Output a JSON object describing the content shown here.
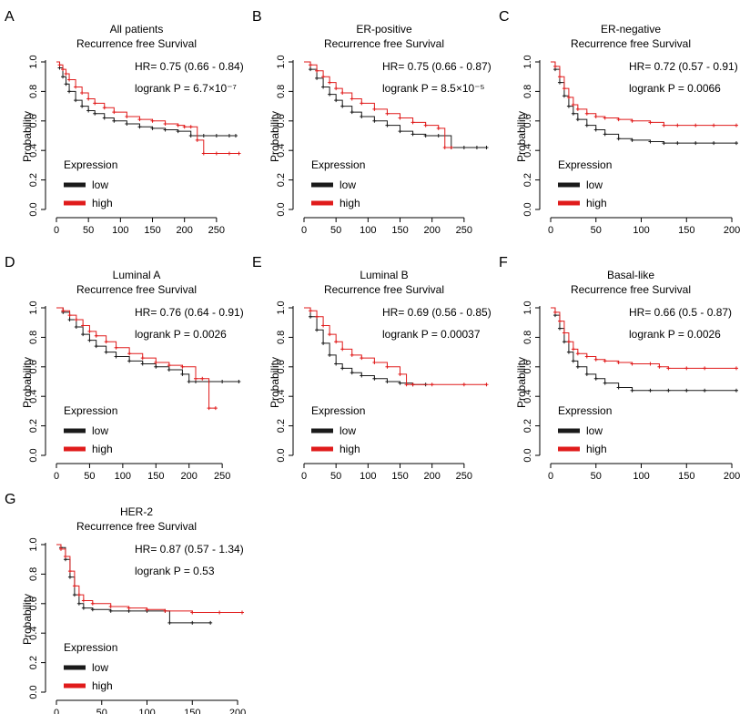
{
  "colors": {
    "low": "#1a1a1a",
    "high": "#e01b1b"
  },
  "chart_data": [
    {
      "panel": "A",
      "type": "line",
      "title": "All patients",
      "subtitle": "Recurrence free Survival",
      "hr": "HR= 0.75 (0.66 - 0.84)",
      "logrank": "logrank P = 6.7×10⁻⁷",
      "xlabel": "",
      "ylabel": "Probability",
      "xlim": [
        0,
        290
      ],
      "ylim": [
        0,
        1
      ],
      "xticks": [
        0,
        50,
        100,
        150,
        200,
        250
      ],
      "yticks": [
        0.0,
        0.2,
        0.4,
        0.6,
        0.8,
        1.0
      ],
      "legend": {
        "title": "Expression",
        "entries": [
          "low",
          "high"
        ]
      },
      "series": [
        {
          "name": "low",
          "x": [
            0,
            5,
            10,
            15,
            20,
            30,
            40,
            50,
            60,
            75,
            90,
            110,
            130,
            150,
            170,
            190,
            210,
            230,
            250,
            270,
            280
          ],
          "y": [
            1.0,
            0.96,
            0.9,
            0.85,
            0.8,
            0.74,
            0.7,
            0.67,
            0.65,
            0.62,
            0.6,
            0.58,
            0.56,
            0.55,
            0.54,
            0.53,
            0.5,
            0.5,
            0.5,
            0.5,
            0.5
          ]
        },
        {
          "name": "high",
          "x": [
            0,
            5,
            10,
            15,
            20,
            30,
            40,
            50,
            60,
            75,
            90,
            110,
            130,
            150,
            170,
            190,
            200,
            210,
            220,
            230,
            250,
            270,
            285
          ],
          "y": [
            1.0,
            0.98,
            0.95,
            0.92,
            0.88,
            0.83,
            0.79,
            0.75,
            0.72,
            0.69,
            0.66,
            0.63,
            0.61,
            0.6,
            0.58,
            0.57,
            0.56,
            0.56,
            0.47,
            0.38,
            0.38,
            0.38,
            0.38
          ]
        }
      ]
    },
    {
      "panel": "B",
      "type": "line",
      "title": "ER-positive",
      "subtitle": "Recurrence free Survival",
      "hr": "HR= 0.75 (0.66 - 0.87)",
      "logrank": "logrank P = 8.5×10⁻⁵",
      "xlabel": "",
      "ylabel": "Probability",
      "xlim": [
        0,
        290
      ],
      "ylim": [
        0,
        1
      ],
      "xticks": [
        0,
        50,
        100,
        150,
        200,
        250
      ],
      "yticks": [
        0.0,
        0.2,
        0.4,
        0.6,
        0.8,
        1.0
      ],
      "legend": {
        "title": "Expression",
        "entries": [
          "low",
          "high"
        ]
      },
      "series": [
        {
          "name": "low",
          "x": [
            0,
            10,
            20,
            30,
            40,
            50,
            60,
            75,
            90,
            110,
            130,
            150,
            170,
            190,
            210,
            230,
            250,
            270,
            285
          ],
          "y": [
            1.0,
            0.95,
            0.89,
            0.83,
            0.78,
            0.74,
            0.7,
            0.66,
            0.63,
            0.6,
            0.57,
            0.53,
            0.51,
            0.5,
            0.5,
            0.42,
            0.42,
            0.42,
            0.42
          ]
        },
        {
          "name": "high",
          "x": [
            0,
            10,
            20,
            30,
            40,
            50,
            60,
            75,
            90,
            110,
            130,
            150,
            170,
            190,
            210,
            220,
            230
          ],
          "y": [
            1.0,
            0.98,
            0.94,
            0.9,
            0.86,
            0.82,
            0.79,
            0.75,
            0.72,
            0.68,
            0.65,
            0.62,
            0.59,
            0.57,
            0.55,
            0.42,
            0.42
          ]
        }
      ]
    },
    {
      "panel": "C",
      "type": "line",
      "title": "ER-negative",
      "subtitle": "Recurrence free Survival",
      "hr": "HR= 0.72 (0.57 - 0.91)",
      "logrank": "logrank P = 0.0066",
      "xlabel": "",
      "ylabel": "Probability",
      "xlim": [
        0,
        205
      ],
      "ylim": [
        0,
        1
      ],
      "xticks": [
        0,
        50,
        100,
        150,
        200
      ],
      "yticks": [
        0.0,
        0.2,
        0.4,
        0.6,
        0.8,
        1.0
      ],
      "legend": {
        "title": "Expression",
        "entries": [
          "low",
          "high"
        ]
      },
      "series": [
        {
          "name": "low",
          "x": [
            0,
            5,
            10,
            15,
            20,
            25,
            30,
            40,
            50,
            60,
            75,
            90,
            110,
            125,
            140,
            160,
            180,
            205
          ],
          "y": [
            1.0,
            0.95,
            0.86,
            0.77,
            0.7,
            0.65,
            0.61,
            0.57,
            0.54,
            0.51,
            0.48,
            0.47,
            0.46,
            0.45,
            0.45,
            0.45,
            0.45,
            0.45
          ]
        },
        {
          "name": "high",
          "x": [
            0,
            5,
            10,
            15,
            20,
            25,
            30,
            40,
            50,
            60,
            75,
            90,
            110,
            125,
            140,
            160,
            180,
            205
          ],
          "y": [
            1.0,
            0.97,
            0.9,
            0.82,
            0.76,
            0.71,
            0.68,
            0.65,
            0.63,
            0.62,
            0.61,
            0.6,
            0.59,
            0.57,
            0.57,
            0.57,
            0.57,
            0.57
          ]
        }
      ]
    },
    {
      "panel": "D",
      "type": "line",
      "title": "Luminal A",
      "subtitle": "Recurrence free Survival",
      "hr": "HR= 0.76 (0.64 - 0.91)",
      "logrank": "logrank P = 0.0026",
      "xlabel": "",
      "ylabel": "Probability",
      "xlim": [
        0,
        280
      ],
      "ylim": [
        0,
        1
      ],
      "xticks": [
        0,
        50,
        100,
        150,
        200,
        250
      ],
      "yticks": [
        0.0,
        0.2,
        0.4,
        0.6,
        0.8,
        1.0
      ],
      "legend": {
        "title": "Expression",
        "entries": [
          "low",
          "high"
        ]
      },
      "series": [
        {
          "name": "low",
          "x": [
            0,
            10,
            20,
            30,
            40,
            50,
            60,
            75,
            90,
            110,
            130,
            150,
            170,
            190,
            200,
            210,
            230,
            250,
            275
          ],
          "y": [
            1.0,
            0.97,
            0.92,
            0.87,
            0.82,
            0.78,
            0.74,
            0.7,
            0.67,
            0.64,
            0.62,
            0.6,
            0.58,
            0.55,
            0.5,
            0.5,
            0.5,
            0.5,
            0.5
          ]
        },
        {
          "name": "high",
          "x": [
            0,
            10,
            20,
            30,
            40,
            50,
            60,
            75,
            90,
            110,
            130,
            150,
            170,
            190,
            210,
            220,
            230,
            240
          ],
          "y": [
            1.0,
            0.98,
            0.95,
            0.92,
            0.88,
            0.84,
            0.81,
            0.77,
            0.73,
            0.69,
            0.66,
            0.63,
            0.61,
            0.6,
            0.52,
            0.52,
            0.32,
            0.32
          ]
        }
      ]
    },
    {
      "panel": "E",
      "type": "line",
      "title": "Luminal B",
      "subtitle": "Recurrence free Survival",
      "hr": "HR= 0.69 (0.56 - 0.85)",
      "logrank": "logrank P = 0.00037",
      "xlabel": "",
      "ylabel": "Probability",
      "xlim": [
        0,
        290
      ],
      "ylim": [
        0,
        1
      ],
      "xticks": [
        0,
        50,
        100,
        150,
        200,
        250
      ],
      "yticks": [
        0.0,
        0.2,
        0.4,
        0.6,
        0.8,
        1.0
      ],
      "legend": {
        "title": "Expression",
        "entries": [
          "low",
          "high"
        ]
      },
      "series": [
        {
          "name": "low",
          "x": [
            0,
            10,
            20,
            30,
            40,
            50,
            60,
            75,
            90,
            110,
            130,
            150,
            170,
            190
          ],
          "y": [
            1.0,
            0.94,
            0.85,
            0.76,
            0.68,
            0.62,
            0.59,
            0.56,
            0.54,
            0.52,
            0.5,
            0.49,
            0.48,
            0.48
          ]
        },
        {
          "name": "high",
          "x": [
            0,
            10,
            20,
            30,
            40,
            50,
            60,
            75,
            90,
            110,
            130,
            150,
            160,
            170,
            200,
            250,
            285
          ],
          "y": [
            1.0,
            0.98,
            0.94,
            0.88,
            0.82,
            0.77,
            0.72,
            0.68,
            0.66,
            0.63,
            0.6,
            0.55,
            0.48,
            0.48,
            0.48,
            0.48,
            0.48
          ]
        }
      ]
    },
    {
      "panel": "F",
      "type": "line",
      "title": "Basal-like",
      "subtitle": "Recurrence free Survival",
      "hr": "HR= 0.66 (0.5 - 0.87)",
      "logrank": "logrank P = 0.0026",
      "xlabel": "",
      "ylabel": "Probability",
      "xlim": [
        0,
        205
      ],
      "ylim": [
        0,
        1
      ],
      "xticks": [
        0,
        50,
        100,
        150,
        200
      ],
      "yticks": [
        0.0,
        0.2,
        0.4,
        0.6,
        0.8,
        1.0
      ],
      "legend": {
        "title": "Expression",
        "entries": [
          "low",
          "high"
        ]
      },
      "series": [
        {
          "name": "low",
          "x": [
            0,
            5,
            10,
            15,
            20,
            25,
            30,
            40,
            50,
            60,
            75,
            90,
            110,
            130,
            150,
            170,
            205
          ],
          "y": [
            1.0,
            0.95,
            0.86,
            0.77,
            0.7,
            0.64,
            0.6,
            0.55,
            0.52,
            0.49,
            0.46,
            0.44,
            0.44,
            0.44,
            0.44,
            0.44,
            0.44
          ]
        },
        {
          "name": "high",
          "x": [
            0,
            5,
            10,
            15,
            20,
            25,
            30,
            40,
            50,
            60,
            75,
            90,
            110,
            120,
            130,
            150,
            170,
            205
          ],
          "y": [
            1.0,
            0.97,
            0.91,
            0.83,
            0.77,
            0.72,
            0.69,
            0.67,
            0.65,
            0.64,
            0.63,
            0.62,
            0.62,
            0.6,
            0.59,
            0.59,
            0.59,
            0.59
          ]
        }
      ]
    },
    {
      "panel": "G",
      "type": "line",
      "title": "HER-2",
      "subtitle": "Recurrence free Survival",
      "hr": "HR= 0.87 (0.57 - 1.34)",
      "logrank": "logrank P = 0.53",
      "xlabel": "",
      "ylabel": "Probability",
      "xlim": [
        0,
        205
      ],
      "ylim": [
        0,
        1
      ],
      "xticks": [
        0,
        50,
        100,
        150,
        200
      ],
      "yticks": [
        0.0,
        0.2,
        0.4,
        0.6,
        0.8,
        1.0
      ],
      "legend": {
        "title": "Expression",
        "entries": [
          "low",
          "high"
        ]
      },
      "series": [
        {
          "name": "low",
          "x": [
            0,
            5,
            10,
            15,
            20,
            25,
            30,
            40,
            60,
            80,
            100,
            120,
            125,
            150,
            170
          ],
          "y": [
            1.0,
            0.98,
            0.9,
            0.78,
            0.66,
            0.6,
            0.57,
            0.56,
            0.55,
            0.55,
            0.55,
            0.55,
            0.47,
            0.47,
            0.47
          ]
        },
        {
          "name": "high",
          "x": [
            0,
            5,
            10,
            15,
            20,
            25,
            30,
            40,
            60,
            80,
            100,
            120,
            150,
            180,
            205
          ],
          "y": [
            1.0,
            0.97,
            0.92,
            0.82,
            0.72,
            0.66,
            0.62,
            0.6,
            0.58,
            0.57,
            0.56,
            0.55,
            0.54,
            0.54,
            0.54
          ]
        }
      ]
    }
  ]
}
